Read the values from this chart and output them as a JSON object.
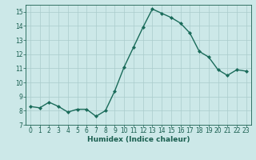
{
  "x": [
    0,
    1,
    2,
    3,
    4,
    5,
    6,
    7,
    8,
    9,
    10,
    11,
    12,
    13,
    14,
    15,
    16,
    17,
    18,
    19,
    20,
    21,
    22,
    23
  ],
  "y": [
    8.3,
    8.2,
    8.6,
    8.3,
    7.9,
    8.1,
    8.1,
    7.6,
    8.0,
    9.4,
    11.1,
    12.5,
    13.9,
    15.2,
    14.9,
    14.6,
    14.2,
    13.5,
    12.2,
    11.8,
    10.9,
    10.5,
    10.9,
    10.8
  ],
  "xlabel": "Humidex (Indice chaleur)",
  "ylim": [
    7,
    15.5
  ],
  "xlim": [
    -0.5,
    23.5
  ],
  "yticks": [
    7,
    8,
    9,
    10,
    11,
    12,
    13,
    14,
    15
  ],
  "xticks": [
    0,
    1,
    2,
    3,
    4,
    5,
    6,
    7,
    8,
    9,
    10,
    11,
    12,
    13,
    14,
    15,
    16,
    17,
    18,
    19,
    20,
    21,
    22,
    23
  ],
  "line_color": "#1a6b5a",
  "marker_color": "#1a6b5a",
  "bg_color": "#cce8e8",
  "grid_color": "#aacccc",
  "tick_label_color": "#1a5f50",
  "xlabel_color": "#1a5f50",
  "linewidth": 1.0,
  "markersize": 2.0,
  "tick_fontsize": 5.5,
  "xlabel_fontsize": 6.5
}
